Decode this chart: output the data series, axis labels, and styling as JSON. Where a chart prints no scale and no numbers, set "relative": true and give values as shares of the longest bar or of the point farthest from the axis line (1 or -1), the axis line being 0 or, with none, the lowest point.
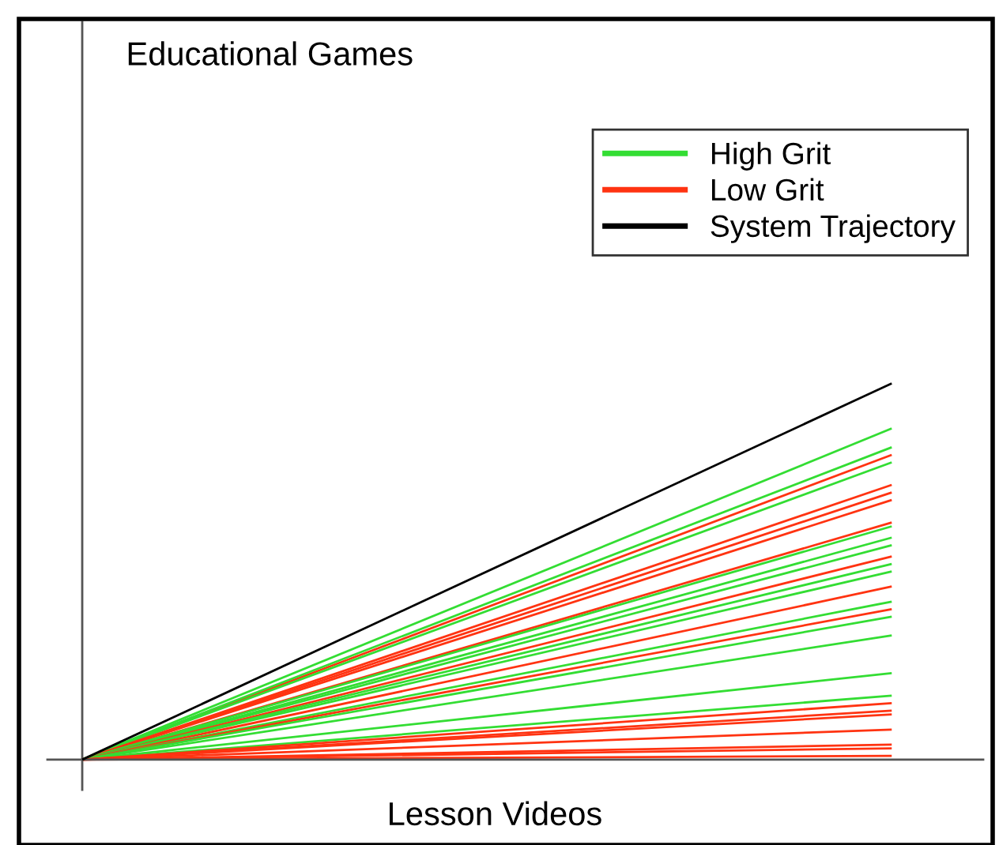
{
  "chart_data": {
    "type": "line",
    "title": "Educational Games",
    "xlabel": "Lesson Videos",
    "categories": [
      null,
      null
    ],
    "relative": true,
    "legend": "top right",
    "series": [
      {
        "name": "High Grit",
        "color": "#33dd33",
        "values": [
          0,
          0.88
        ]
      },
      {
        "name": "Low Grit",
        "color": "#ff3311",
        "values": [
          0,
          0.81
        ]
      },
      {
        "name": "System Trajectory",
        "color": "#000000",
        "values": [
          0,
          1
        ]
      },
      {
        "color": "#33dd33",
        "values": [
          0,
          0.83
        ]
      },
      {
        "color": "#33dd33",
        "values": [
          0,
          0.79
        ]
      },
      {
        "color": "#ff3311",
        "values": [
          0,
          0.73
        ]
      },
      {
        "color": "#ff3311",
        "values": [
          0,
          0.71
        ]
      },
      {
        "color": "#ff3311",
        "values": [
          0,
          0.69
        ]
      },
      {
        "color": "#ff3311",
        "values": [
          0,
          0.63
        ]
      },
      {
        "color": "#33dd33",
        "values": [
          0,
          0.62
        ]
      },
      {
        "color": "#33dd33",
        "values": [
          0,
          0.59
        ]
      },
      {
        "color": "#33dd33",
        "values": [
          0,
          0.57
        ]
      },
      {
        "color": "#ff3311",
        "values": [
          0,
          0.54
        ]
      },
      {
        "color": "#33dd33",
        "values": [
          0,
          0.52
        ]
      },
      {
        "color": "#33dd33",
        "values": [
          0,
          0.5
        ]
      },
      {
        "color": "#ff3311",
        "values": [
          0,
          0.46
        ]
      },
      {
        "color": "#33dd33",
        "values": [
          0,
          0.42
        ]
      },
      {
        "color": "#ff3311",
        "values": [
          0,
          0.4
        ]
      },
      {
        "color": "#33dd33",
        "values": [
          0,
          0.38
        ]
      },
      {
        "color": "#33dd33",
        "values": [
          0,
          0.33
        ]
      },
      {
        "color": "#33dd33",
        "values": [
          0,
          0.23
        ]
      },
      {
        "color": "#33dd33",
        "values": [
          0,
          0.17
        ]
      },
      {
        "color": "#ff3311",
        "values": [
          0,
          0.15
        ]
      },
      {
        "color": "#ff3311",
        "values": [
          0,
          0.13
        ]
      },
      {
        "color": "#ff3311",
        "values": [
          0,
          0.12
        ]
      },
      {
        "color": "#ff3311",
        "values": [
          0,
          0.08
        ]
      },
      {
        "color": "#ff3311",
        "values": [
          0,
          0.04
        ]
      },
      {
        "color": "#ff3311",
        "values": [
          0,
          0.03
        ]
      },
      {
        "color": "#ff3311",
        "values": [
          0,
          0.01
        ]
      }
    ]
  }
}
